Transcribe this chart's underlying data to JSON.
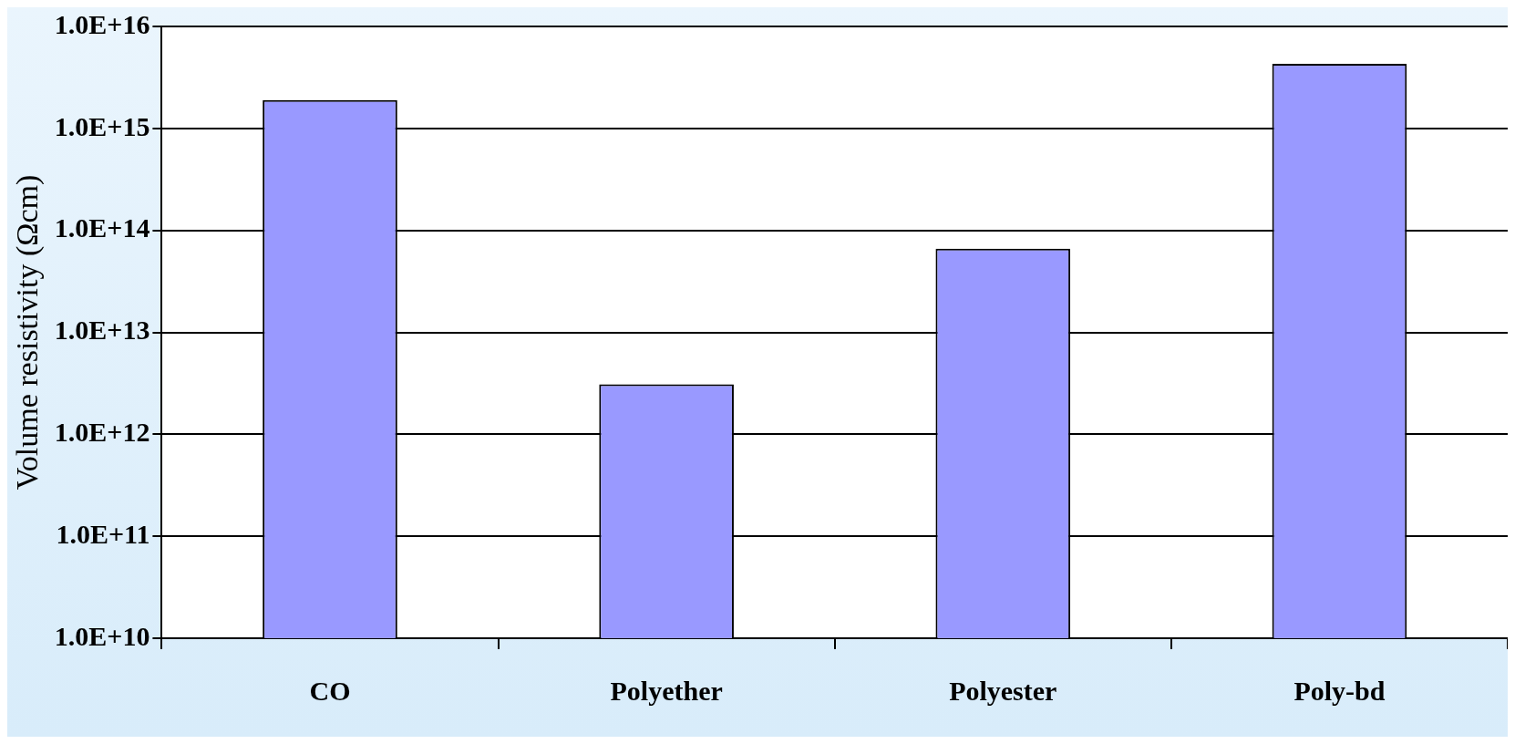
{
  "chart_data": {
    "type": "bar",
    "ylabel": "Volume resistivity (Ωcm)",
    "categories": [
      "CO",
      "Polyether",
      "Polyester",
      "Poly-bd"
    ],
    "values": [
      1900000000000000.0,
      3100000000000.0,
      66000000000000.0,
      4300000000000000.0
    ],
    "color": "#9999ff",
    "log": true,
    "ylim": [
      10000000000.0,
      1e+16
    ],
    "yticks": [
      {
        "value": 10000000000.0,
        "label": "1.0E+10"
      },
      {
        "value": 100000000000.0,
        "label": "1.0E+11"
      },
      {
        "value": 1000000000000.0,
        "label": "1.0E+12"
      },
      {
        "value": 10000000000000.0,
        "label": "1.0E+13"
      },
      {
        "value": 100000000000000.0,
        "label": "1.0E+14"
      },
      {
        "value": 1000000000000000.0,
        "label": "1.0E+15"
      },
      {
        "value": 1e+16,
        "label": "1.0E+16"
      }
    ],
    "grid": "y",
    "legend": false
  }
}
